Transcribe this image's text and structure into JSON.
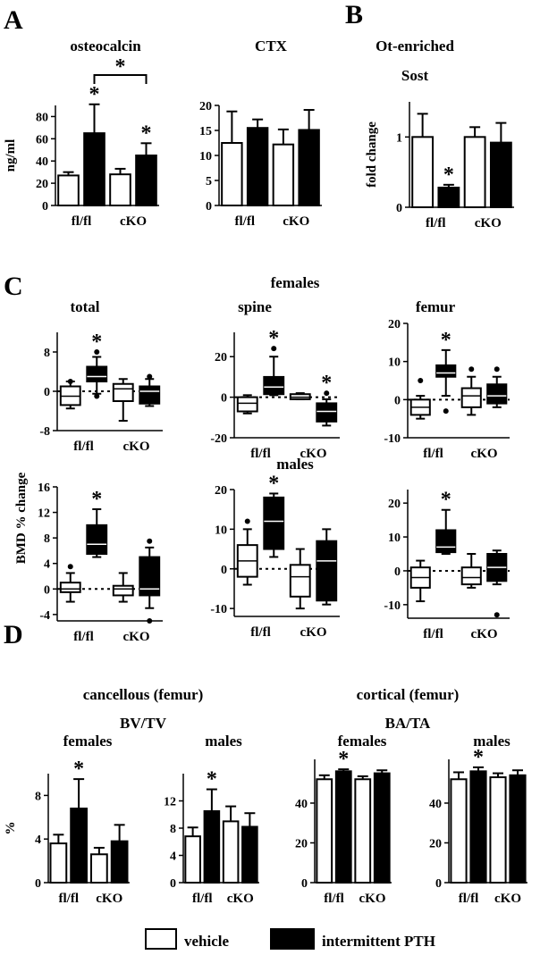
{
  "legend": {
    "vehicle": "vehicle",
    "pth": "intermittent PTH",
    "colors": {
      "vehicle": "#ffffff",
      "pth": "#000000"
    }
  },
  "panels": [
    {
      "id": "A",
      "label": "A"
    },
    {
      "id": "B",
      "label": "B"
    },
    {
      "id": "C",
      "label": "C",
      "header": "females",
      "header2": "males",
      "ylabel": "BMD  % change"
    },
    {
      "id": "D",
      "label": "D",
      "headers": [
        "cancellous (femur)",
        "BV/TV",
        "cortical (femur)",
        "BA/TA"
      ]
    }
  ],
  "chart_data": [
    {
      "id": "osteocalcin",
      "type": "bar",
      "title": "osteocalcin",
      "ylabel": "ng/ml",
      "ylim": [
        0,
        90
      ],
      "yticks": [
        "0",
        "20",
        "40",
        "60",
        "80"
      ],
      "categories": [
        "fl/fl",
        "cKO"
      ],
      "series": [
        {
          "name": "vehicle",
          "values": [
            27,
            28
          ],
          "errors": [
            3,
            5
          ]
        },
        {
          "name": "intermittent PTH",
          "values": [
            65,
            45
          ],
          "errors": [
            26,
            11
          ]
        }
      ],
      "annotations": [
        "*",
        "*",
        "*"
      ]
    },
    {
      "id": "ctx",
      "type": "bar",
      "title": "CTX",
      "ylabel": "",
      "ylim": [
        0,
        20
      ],
      "yticks": [
        "0",
        "5",
        "10",
        "15",
        "20"
      ],
      "categories": [
        "fl/fl",
        "cKO"
      ],
      "series": [
        {
          "name": "vehicle",
          "values": [
            12.5,
            12.2
          ],
          "errors": [
            6.3,
            3
          ]
        },
        {
          "name": "intermittent PTH",
          "values": [
            15.5,
            15.1
          ],
          "errors": [
            1.7,
            4
          ]
        }
      ],
      "annotations": []
    },
    {
      "id": "sost",
      "type": "bar",
      "title": "Ot-enriched",
      "subtitle": "Sost",
      "ylabel": "fold change",
      "ylim": [
        0,
        1.5
      ],
      "yticks": [
        "0",
        "1"
      ],
      "categories": [
        "fl/fl",
        "cKO"
      ],
      "series": [
        {
          "name": "vehicle",
          "values": [
            1.0,
            1.0
          ],
          "errors": [
            0.33,
            0.14
          ]
        },
        {
          "name": "intermittent PTH",
          "values": [
            0.28,
            0.92
          ],
          "errors": [
            0.04,
            0.28
          ]
        }
      ],
      "annotations": [
        "*"
      ]
    },
    {
      "id": "bmd-f-total",
      "type": "box",
      "title": "total",
      "group": "females",
      "ylim": [
        -8,
        12
      ],
      "yticks": [
        "8",
        "0",
        "-8"
      ],
      "zero_line": true,
      "categories": [
        "fl/fl",
        "cKO"
      ],
      "boxes": [
        {
          "series": "vehicle",
          "min": -3.5,
          "q1": -2.8,
          "median": -1,
          "q3": 1,
          "max": 2,
          "outliers": [
            2
          ]
        },
        {
          "series": "intermittent PTH",
          "min": -0.5,
          "q1": 2,
          "median": 3,
          "q3": 5,
          "max": 7,
          "outliers": [
            -1,
            8
          ]
        },
        {
          "series": "vehicle",
          "min": -6,
          "q1": -2,
          "median": 0.5,
          "q3": 1.5,
          "max": 2.5,
          "outliers": []
        },
        {
          "series": "intermittent PTH",
          "min": -3,
          "q1": -2.5,
          "median": 0,
          "q3": 1,
          "max": 2.5,
          "outliers": [
            3
          ]
        }
      ],
      "annotations": [
        "*"
      ]
    },
    {
      "id": "bmd-f-spine",
      "type": "box",
      "title": "spine",
      "group": "females",
      "ylim": [
        -20,
        32
      ],
      "yticks": [
        "20",
        "0",
        "-20"
      ],
      "zero_line": true,
      "categories": [
        "fl/fl",
        "cKO"
      ],
      "boxes": [
        {
          "series": "vehicle",
          "min": -8,
          "q1": -7,
          "median": -3,
          "q3": 0,
          "max": 1,
          "outliers": []
        },
        {
          "series": "intermittent PTH",
          "min": 1,
          "q1": 1.5,
          "median": 5,
          "q3": 10,
          "max": 20,
          "outliers": [
            24
          ]
        },
        {
          "series": "vehicle",
          "min": -1,
          "q1": -1,
          "median": 0,
          "q3": 1.5,
          "max": 2,
          "outliers": []
        },
        {
          "series": "intermittent PTH",
          "min": -14,
          "q1": -12,
          "median": -7,
          "q3": -3,
          "max": -1,
          "outliers": [
            2
          ]
        }
      ],
      "annotations": [
        "*",
        "*"
      ]
    },
    {
      "id": "bmd-f-femur",
      "type": "box",
      "title": "femur",
      "group": "females",
      "ylim": [
        -10,
        20
      ],
      "yticks": [
        "20",
        "10",
        "0",
        "-10"
      ],
      "zero_line": true,
      "categories": [
        "fl/fl",
        "cKO"
      ],
      "boxes": [
        {
          "series": "vehicle",
          "min": -5,
          "q1": -4,
          "median": -2,
          "q3": 0,
          "max": 1,
          "outliers": [
            5
          ]
        },
        {
          "series": "intermittent PTH",
          "min": 1,
          "q1": 6,
          "median": 7,
          "q3": 9,
          "max": 13,
          "outliers": [
            -3
          ]
        },
        {
          "series": "vehicle",
          "min": -4,
          "q1": -2,
          "median": 1,
          "q3": 3,
          "max": 6,
          "outliers": [
            8
          ]
        },
        {
          "series": "intermittent PTH",
          "min": -2,
          "q1": -1,
          "median": 1,
          "q3": 4,
          "max": 6,
          "outliers": [
            8
          ]
        }
      ],
      "annotations": [
        "*"
      ]
    },
    {
      "id": "bmd-m-total",
      "type": "box",
      "title": "",
      "group": "males",
      "ylim": [
        -5,
        16
      ],
      "yticks": [
        "16",
        "12",
        "8",
        "4",
        "0",
        "-4"
      ],
      "zero_line": true,
      "categories": [
        "fl/fl",
        "cKO"
      ],
      "boxes": [
        {
          "series": "vehicle",
          "min": -2,
          "q1": -0.5,
          "median": 0,
          "q3": 1,
          "max": 2.5,
          "outliers": [
            3.5
          ]
        },
        {
          "series": "intermittent PTH",
          "min": 5,
          "q1": 5.5,
          "median": 7,
          "q3": 10,
          "max": 12.5,
          "outliers": []
        },
        {
          "series": "vehicle",
          "min": -2,
          "q1": -1,
          "median": 0,
          "q3": 0.5,
          "max": 2.5,
          "outliers": []
        },
        {
          "series": "intermittent PTH",
          "min": -3,
          "q1": -1,
          "median": 0,
          "q3": 5,
          "max": 6.5,
          "outliers": [
            -5,
            7.5
          ]
        }
      ],
      "annotations": [
        "*"
      ]
    },
    {
      "id": "bmd-m-spine",
      "type": "box",
      "title": "",
      "group": "males",
      "ylim": [
        -12,
        20
      ],
      "yticks": [
        "20",
        "10",
        "0",
        "-10"
      ],
      "zero_line": true,
      "categories": [
        "fl/fl",
        "cKO"
      ],
      "boxes": [
        {
          "series": "vehicle",
          "min": -4,
          "q1": -2,
          "median": 2,
          "q3": 6,
          "max": 10,
          "outliers": [
            12
          ]
        },
        {
          "series": "intermittent PTH",
          "min": 3,
          "q1": 5,
          "median": 12,
          "q3": 18,
          "max": 19,
          "outliers": []
        },
        {
          "series": "vehicle",
          "min": -10,
          "q1": -7,
          "median": -2,
          "q3": 1,
          "max": 5,
          "outliers": []
        },
        {
          "series": "intermittent PTH",
          "min": -9,
          "q1": -8,
          "median": 2,
          "q3": 7,
          "max": 10,
          "outliers": []
        }
      ],
      "annotations": [
        "*"
      ]
    },
    {
      "id": "bmd-m-femur",
      "type": "box",
      "title": "",
      "group": "males",
      "ylim": [
        -14,
        24
      ],
      "yticks": [
        "20",
        "10",
        "0",
        "-10"
      ],
      "zero_line": true,
      "categories": [
        "fl/fl",
        "cKO"
      ],
      "boxes": [
        {
          "series": "vehicle",
          "min": -9,
          "q1": -5,
          "median": -2,
          "q3": 1,
          "max": 3,
          "outliers": []
        },
        {
          "series": "intermittent PTH",
          "min": 5,
          "q1": 5.5,
          "median": 7,
          "q3": 12,
          "max": 18,
          "outliers": []
        },
        {
          "series": "vehicle",
          "min": -5,
          "q1": -4,
          "median": -2,
          "q3": 1,
          "max": 5,
          "outliers": []
        },
        {
          "series": "intermittent PTH",
          "min": -4,
          "q1": -3,
          "median": 1,
          "q3": 5,
          "max": 6,
          "outliers": [
            -13
          ]
        }
      ],
      "annotations": [
        "*"
      ]
    },
    {
      "id": "bvtv-females",
      "type": "bar",
      "title": "females",
      "ylabel": "%",
      "ylim": [
        0,
        10
      ],
      "yticks": [
        "0",
        "4",
        "8"
      ],
      "categories": [
        "fl/fl",
        "cKO"
      ],
      "series": [
        {
          "name": "vehicle",
          "values": [
            3.6,
            2.6
          ],
          "errors": [
            0.8,
            0.6
          ]
        },
        {
          "name": "intermittent PTH",
          "values": [
            6.8,
            3.8
          ],
          "errors": [
            2.7,
            1.5
          ]
        }
      ],
      "annotations": [
        "*"
      ]
    },
    {
      "id": "bvtv-males",
      "type": "bar",
      "title": "males",
      "ylabel": "",
      "ylim": [
        0,
        16
      ],
      "yticks": [
        "0",
        "4",
        "8",
        "12"
      ],
      "categories": [
        "fl/fl",
        "cKO"
      ],
      "series": [
        {
          "name": "vehicle",
          "values": [
            6.8,
            9
          ],
          "errors": [
            1.3,
            2.2
          ]
        },
        {
          "name": "intermittent PTH",
          "values": [
            10.5,
            8.2
          ],
          "errors": [
            3.2,
            2
          ]
        }
      ],
      "annotations": [
        "*"
      ]
    },
    {
      "id": "bata-females",
      "type": "bar",
      "title": "females",
      "ylabel": "",
      "ylim": [
        0,
        62
      ],
      "yticks": [
        "0",
        "20",
        "40"
      ],
      "categories": [
        "fl/fl",
        "cKO"
      ],
      "series": [
        {
          "name": "vehicle",
          "values": [
            52,
            52
          ],
          "errors": [
            2,
            1.5
          ]
        },
        {
          "name": "intermittent PTH",
          "values": [
            56,
            55
          ],
          "errors": [
            1,
            1.5
          ]
        }
      ],
      "annotations": [
        "*"
      ]
    },
    {
      "id": "bata-males",
      "type": "bar",
      "title": "males",
      "ylabel": "",
      "ylim": [
        0,
        62
      ],
      "yticks": [
        "0",
        "20",
        "40"
      ],
      "categories": [
        "fl/fl",
        "cKO"
      ],
      "series": [
        {
          "name": "vehicle",
          "values": [
            52,
            53
          ],
          "errors": [
            3.5,
            2
          ]
        },
        {
          "name": "intermittent PTH",
          "values": [
            56,
            54
          ],
          "errors": [
            2,
            2.5
          ]
        }
      ],
      "annotations": [
        "*"
      ]
    }
  ]
}
